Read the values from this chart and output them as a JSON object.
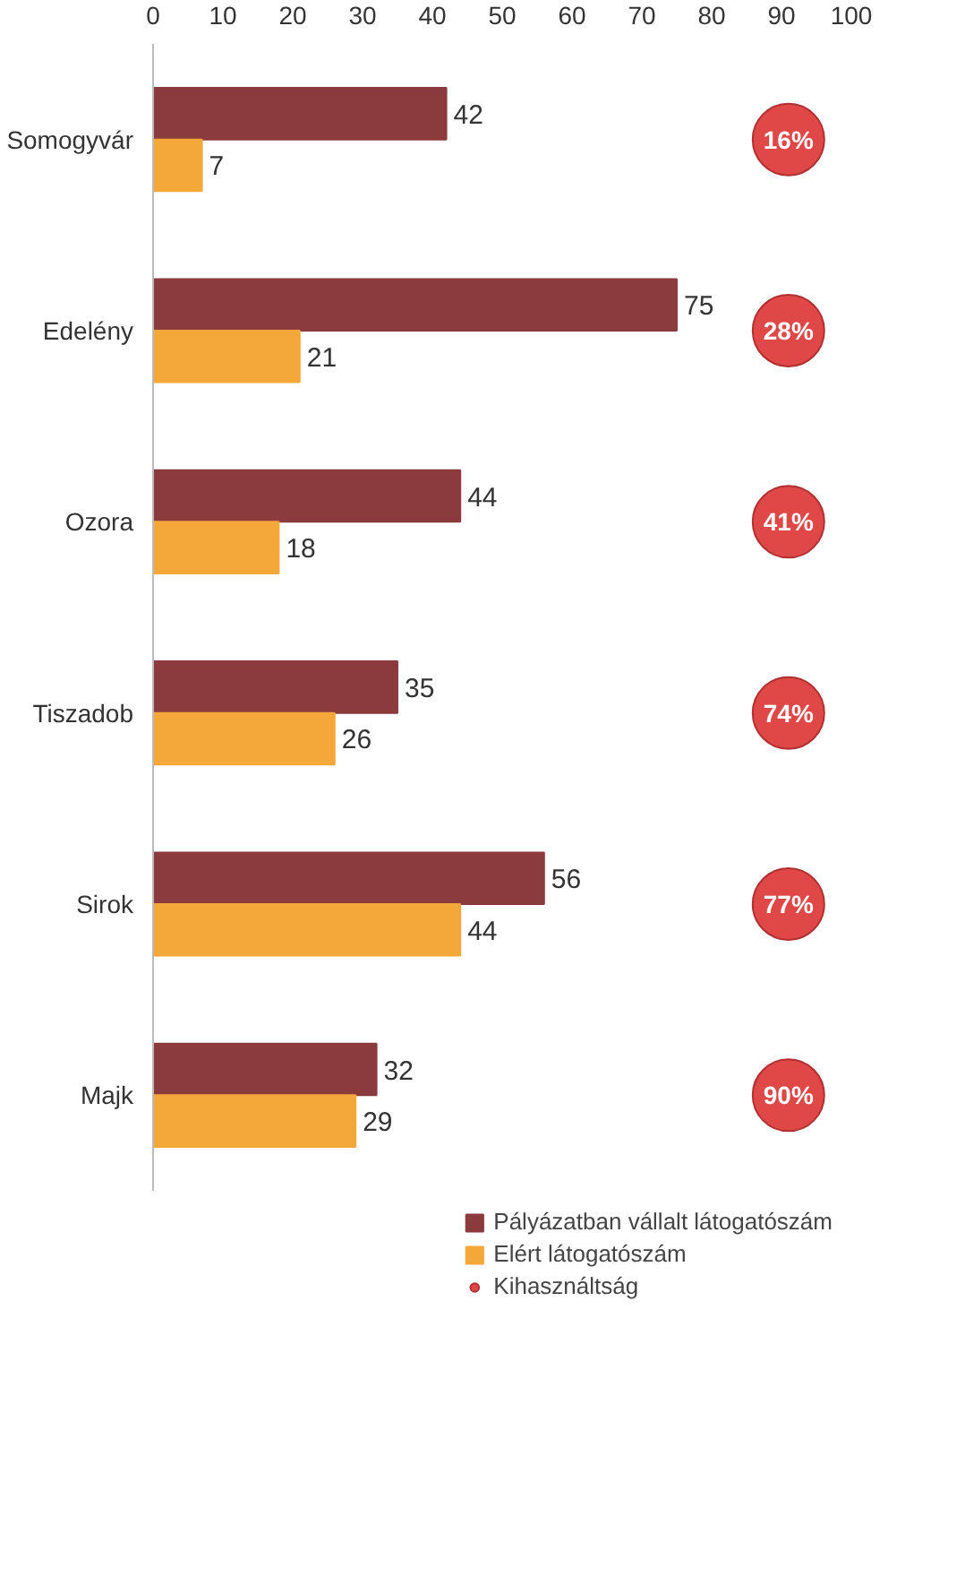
{
  "chart_data": {
    "type": "bar",
    "orientation": "horizontal",
    "categories": [
      "Somogyvár",
      "Edelény",
      "Ozora",
      "Tiszadob",
      "Sirok",
      "Majk"
    ],
    "series": [
      {
        "name": "Pályázatban vállalt látogatószám",
        "color": "#8b3a3e",
        "values": [
          42,
          75,
          44,
          35,
          56,
          32
        ]
      },
      {
        "name": "Elért látogatószám",
        "color": "#f5a83a",
        "values": [
          7,
          21,
          18,
          26,
          44,
          29
        ]
      },
      {
        "name": "Kihasználtság",
        "type": "scatter",
        "color": "#e04848",
        "values": [
          91,
          91,
          91,
          91,
          91,
          91
        ],
        "value_labels": [
          null,
          null,
          null,
          null,
          null,
          null
        ]
      }
    ],
    "annotations": [
      "16%",
      "28%",
      "41%",
      "74%",
      "77%",
      "90%"
    ],
    "data_labels": true,
    "xlim": [
      0,
      100
    ],
    "xticks": [
      0,
      10,
      20,
      30,
      40,
      50,
      60,
      70,
      80,
      90,
      100
    ],
    "grid": false,
    "legend": "bottom"
  }
}
